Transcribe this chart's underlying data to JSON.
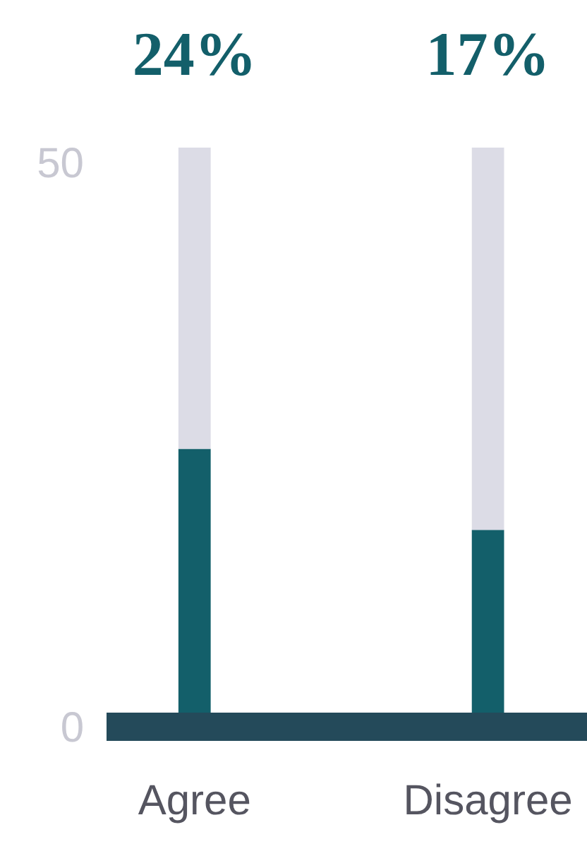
{
  "chart_data": {
    "type": "bar",
    "categories": [
      "Agree",
      "Disagree"
    ],
    "stacked": true,
    "ylim": [
      0,
      50
    ],
    "yticks": [
      0,
      50
    ],
    "series": [
      {
        "color": "#135f6a",
        "values": [
          24,
          17
        ],
        "value_labels": [
          "24%",
          "17%"
        ]
      },
      {
        "color": "#dcdce6",
        "values": [
          26,
          33
        ]
      }
    ]
  }
}
